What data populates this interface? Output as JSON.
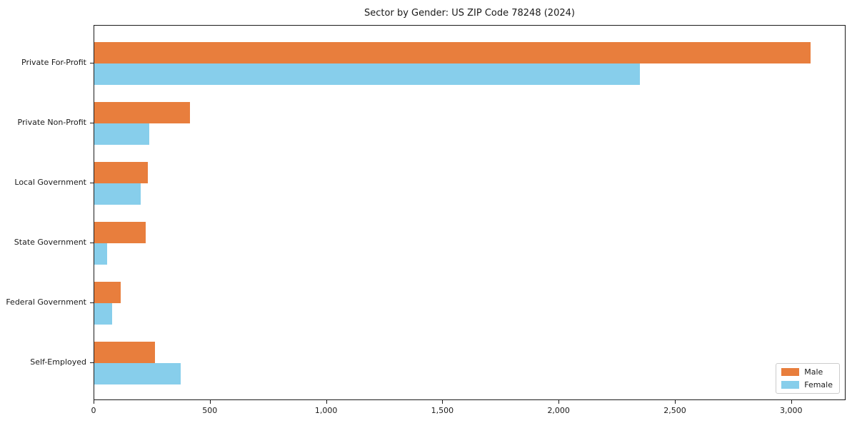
{
  "chart_data": {
    "type": "bar",
    "orientation": "horizontal",
    "title": "Sector by Gender: US ZIP Code 78248 (2024)",
    "categories": [
      "Private For-Profit",
      "Private Non-Profit",
      "Local Government",
      "State Government",
      "Federal Government",
      "Self-Employed"
    ],
    "series": [
      {
        "name": "Male",
        "color": "#e87e3d",
        "values": [
          3080,
          410,
          230,
          220,
          115,
          260
        ]
      },
      {
        "name": "Female",
        "color": "#87ceeb",
        "values": [
          2345,
          235,
          200,
          55,
          78,
          370
        ]
      }
    ],
    "xlabel": "",
    "ylabel": "",
    "xlim": [
      0,
      3234
    ],
    "xticks": [
      0,
      500,
      1000,
      1500,
      2000,
      2500,
      3000
    ],
    "xtick_labels": [
      "0",
      "500",
      "1,000",
      "1,500",
      "2,000",
      "2,500",
      "3,000"
    ],
    "grid": false,
    "legend_position": "lower right",
    "axis_color": "#1a1a1a"
  }
}
